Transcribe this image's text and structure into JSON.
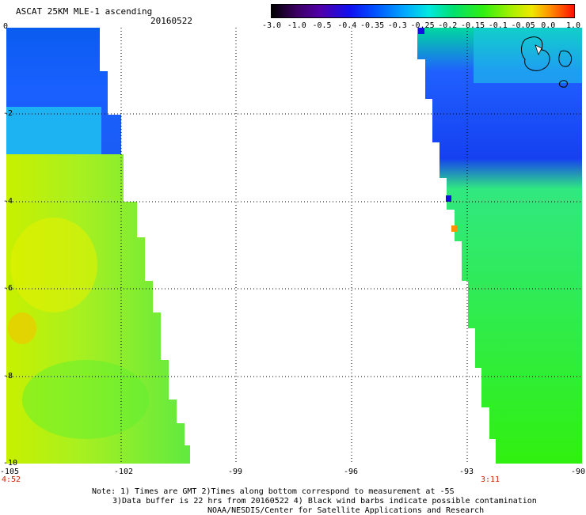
{
  "header": {
    "title": "ASCAT 25KM MLE-1 ascending",
    "date": "20160522"
  },
  "colorbar": {
    "labels": [
      "-3.0",
      "-1.0",
      "-0.5",
      "-0.4",
      "-0.35",
      "-0.3",
      "-0.25",
      "-0.2",
      "-0.15",
      "-0.1",
      "-0.05",
      "0.0",
      "1.0"
    ],
    "colors": [
      "#000000",
      "#3a0060",
      "#5000a8",
      "#1010f0",
      "#0050ff",
      "#00a8ff",
      "#00e8e0",
      "#00e070",
      "#30f010",
      "#b0f000",
      "#f0e800",
      "#ff9000",
      "#ff1000"
    ]
  },
  "axes": {
    "y_ticks": [
      "0",
      "-2",
      "-4",
      "-6",
      "-8",
      "-10"
    ],
    "x_ticks": [
      "-105",
      "-102",
      "-99",
      "-96",
      "-93",
      "-90"
    ],
    "x_time_left": "4:52",
    "x_time_right": "3:11",
    "grid": true
  },
  "notes": {
    "line1": "Note: 1) Times are GMT 2)Times along bottom correspond to measurement at -5S",
    "line2": "3)Data buffer is 22 hrs from 20160522 4) Black wind barbs indicate possible contamination",
    "line3": "NOAA/NESDIS/Center for Satellite Applications and Research"
  }
}
